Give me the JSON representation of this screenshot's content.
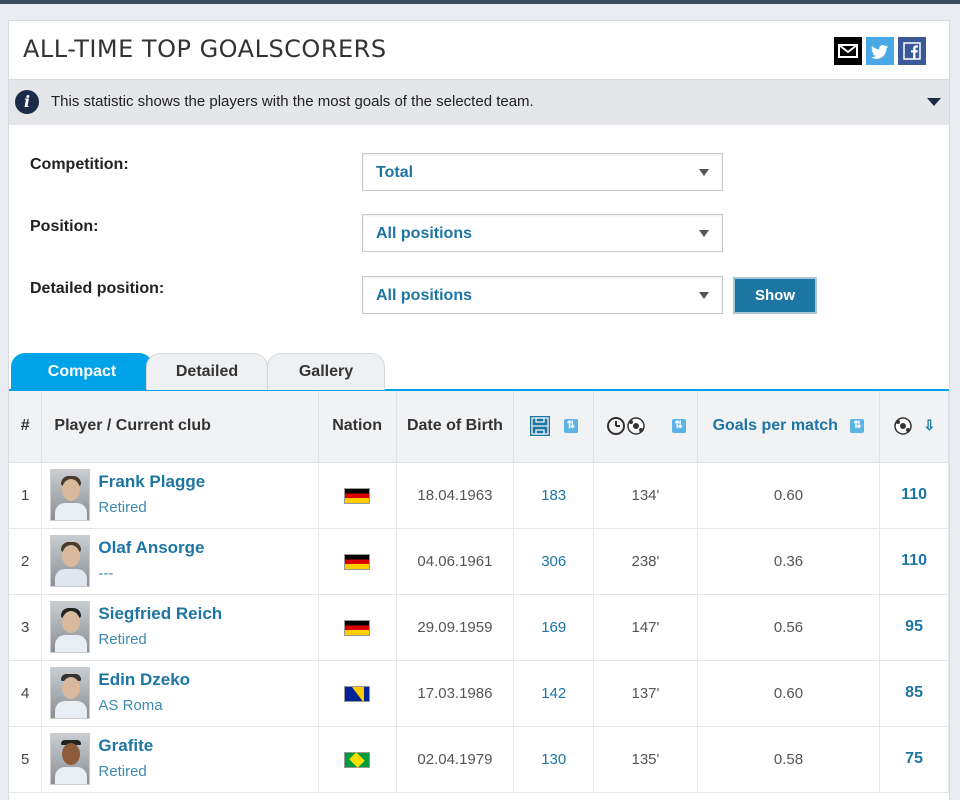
{
  "header": {
    "title": "ALL-TIME TOP GOALSCORERS"
  },
  "share": {
    "mail_icon": "envelope-icon",
    "twitter_icon": "twitter-icon",
    "facebook_icon": "facebook-icon"
  },
  "info": {
    "text": "This statistic shows the players with the most goals of the selected team."
  },
  "filters": {
    "competition_label": "Competition:",
    "competition_value": "Total",
    "position_label": "Position:",
    "position_value": "All positions",
    "detailed_label": "Detailed position:",
    "detailed_value": "All positions",
    "show_label": "Show"
  },
  "tabs": [
    "Compact",
    "Detailed",
    "Gallery"
  ],
  "table": {
    "headers": {
      "rank": "#",
      "player": "Player / Current club",
      "nation": "Nation",
      "dob": "Date of Birth",
      "goals_per_match": "Goals per match"
    },
    "rows": [
      {
        "rank": "1",
        "name": "Frank Plagge",
        "club": "Retired",
        "flag": "de",
        "dob": "18.04.1963",
        "apps": "183",
        "minutes": "134'",
        "gpm": "0.60",
        "goals": "110"
      },
      {
        "rank": "2",
        "name": "Olaf Ansorge",
        "club": "---",
        "flag": "de",
        "dob": "04.06.1961",
        "apps": "306",
        "minutes": "238'",
        "gpm": "0.36",
        "goals": "110"
      },
      {
        "rank": "3",
        "name": "Siegfried Reich",
        "club": "Retired",
        "flag": "de",
        "dob": "29.09.1959",
        "apps": "169",
        "minutes": "147'",
        "gpm": "0.56",
        "goals": "95"
      },
      {
        "rank": "4",
        "name": "Edin Dzeko",
        "club": "AS Roma",
        "flag": "ba",
        "dob": "17.03.1986",
        "apps": "142",
        "minutes": "137'",
        "gpm": "0.60",
        "goals": "85"
      },
      {
        "rank": "5",
        "name": "Grafite",
        "club": "Retired",
        "flag": "br",
        "dob": "02.04.1979",
        "apps": "130",
        "minutes": "135'",
        "gpm": "0.58",
        "goals": "75"
      }
    ]
  },
  "colors": {
    "accent": "#1d75a3",
    "tab_active": "#00a2e8",
    "header_dark": "#1c2c48"
  }
}
